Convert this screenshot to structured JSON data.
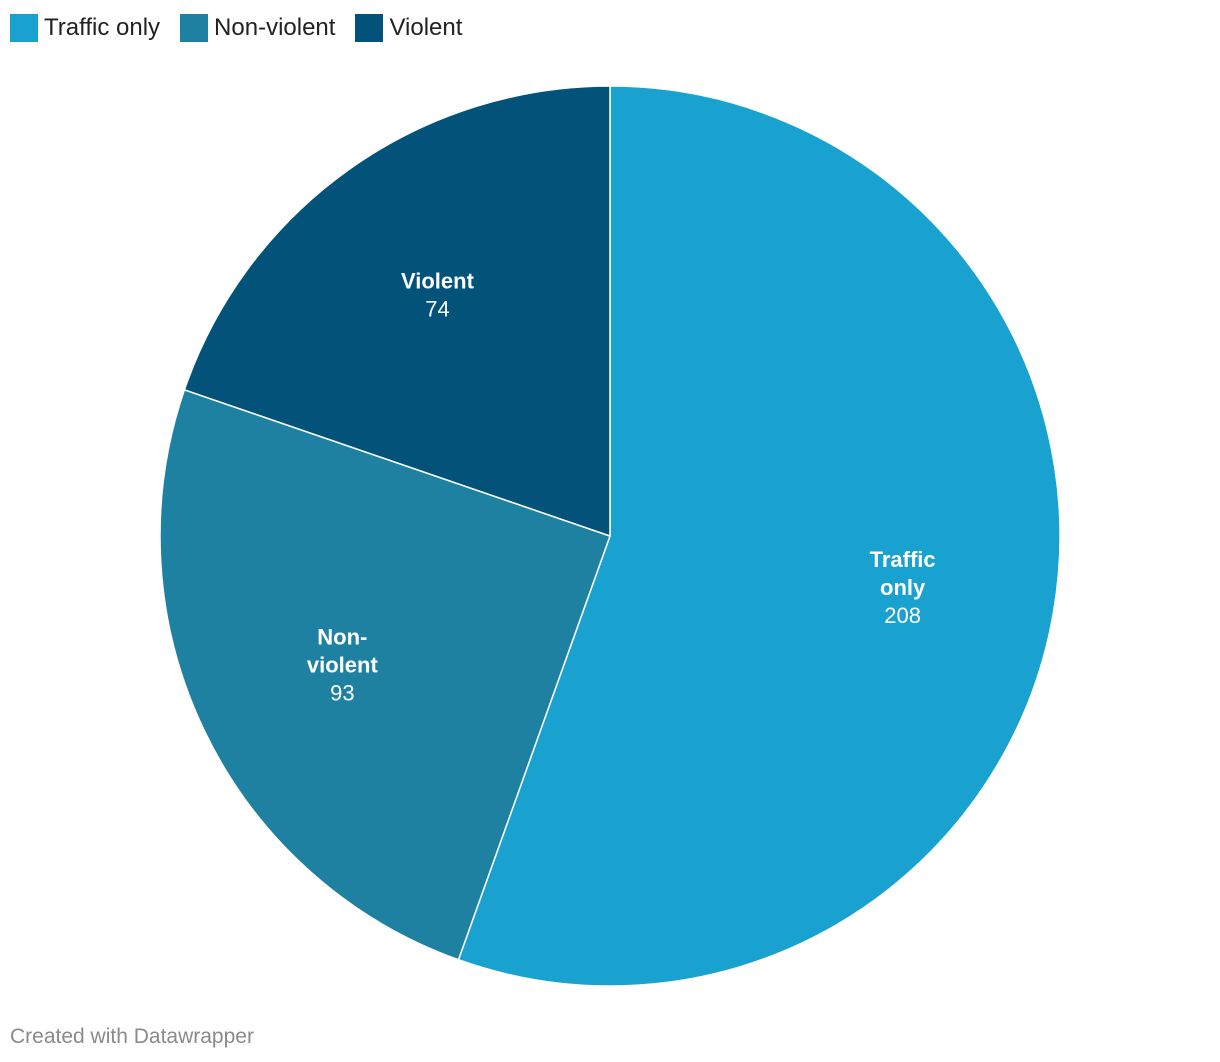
{
  "chart_data": {
    "type": "pie",
    "categories": [
      "Traffic only",
      "Non-violent",
      "Violent"
    ],
    "values": [
      208,
      93,
      74
    ],
    "colors": [
      "#19a2cf",
      "#1f81a2",
      "#02527a"
    ],
    "slice_labels": [
      [
        "Traffic",
        "only"
      ],
      [
        "Non-",
        "violent"
      ],
      [
        "Violent"
      ]
    ],
    "legend_position": "top-left",
    "start": "12 o'clock",
    "direction": "clockwise"
  },
  "credit": "Created with Datawrapper"
}
